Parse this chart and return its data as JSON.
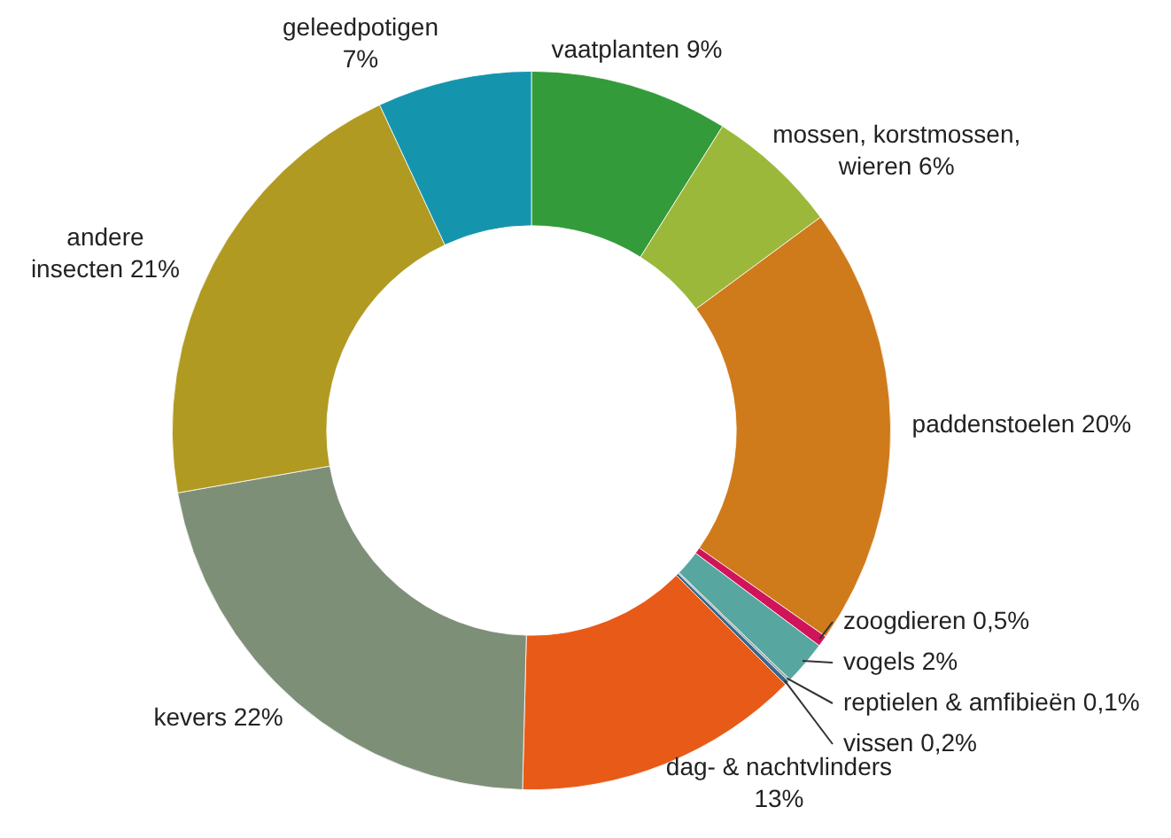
{
  "chart_data": {
    "type": "donut",
    "categories": [
      "vaatplanten",
      "mossen, korstmossen, wieren",
      "paddenstoelen",
      "zoogdieren",
      "vogels",
      "reptielen & amfibieën",
      "vissen",
      "dag- & nachtvlinders",
      "kevers",
      "andere insecten",
      "geleedpotigen"
    ],
    "values": [
      9,
      6,
      20,
      0.5,
      2,
      0.1,
      0.2,
      13,
      22,
      21,
      7
    ],
    "value_labels": [
      "9%",
      "6%",
      "20%",
      "0,5%",
      "2%",
      "0,1%",
      "0,2%",
      "13%",
      "22%",
      "21%",
      "7%"
    ],
    "colors": [
      "#339b3a",
      "#9cb83a",
      "#cf7a1b",
      "#d0145a",
      "#57a6a0",
      "#9aa5a5",
      "#3b6a8a",
      "#e85a18",
      "#7e8f78",
      "#b09a22",
      "#1595ad"
    ],
    "legend": false
  }
}
